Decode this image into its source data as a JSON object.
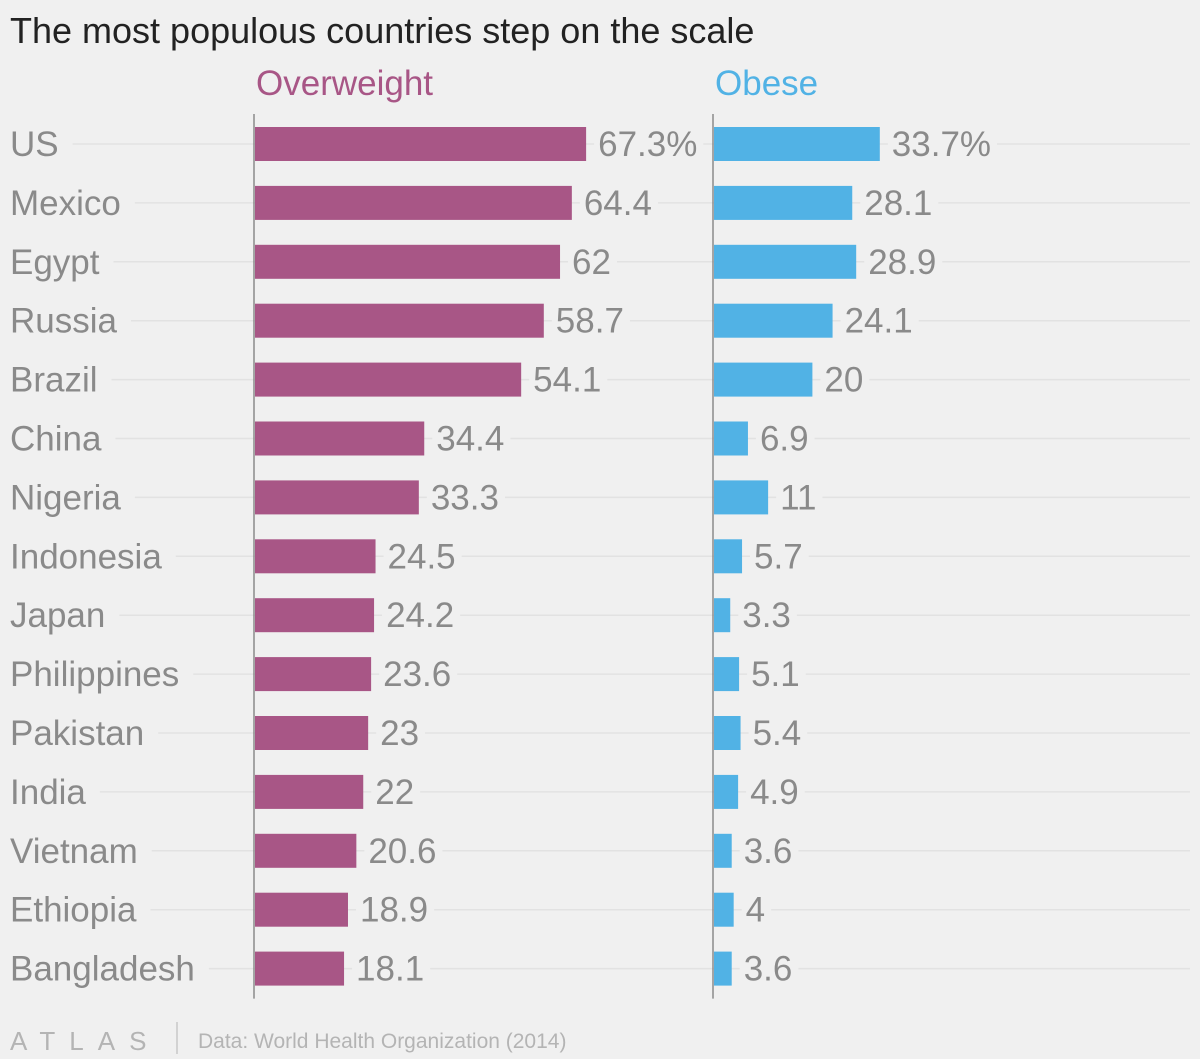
{
  "chart_data": {
    "type": "bar",
    "orientation": "horizontal",
    "title": "The most populous countries step on the scale",
    "categories": [
      "US",
      "Mexico",
      "Egypt",
      "Russia",
      "Brazil",
      "China",
      "Nigeria",
      "Indonesia",
      "Japan",
      "Philippines",
      "Pakistan",
      "India",
      "Vietnam",
      "Ethiopia",
      "Bangladesh"
    ],
    "series": [
      {
        "name": "Overweight",
        "color": "#a85686",
        "values": [
          67.3,
          64.4,
          62,
          58.7,
          54.1,
          34.4,
          33.3,
          24.5,
          24.2,
          23.6,
          23,
          22,
          20.6,
          18.9,
          18.1
        ],
        "labels": [
          "67.3%",
          "64.4",
          "62",
          "58.7",
          "54.1",
          "34.4",
          "33.3",
          "24.5",
          "24.2",
          "23.6",
          "23",
          "22",
          "20.6",
          "18.9",
          "18.1"
        ]
      },
      {
        "name": "Obese",
        "color": "#51b2e5",
        "values": [
          33.7,
          28.1,
          28.9,
          24.1,
          20,
          6.9,
          11,
          5.7,
          3.3,
          5.1,
          5.4,
          4.9,
          3.6,
          4,
          3.6
        ],
        "labels": [
          "33.7%",
          "28.1",
          "28.9",
          "24.1",
          "20",
          "6.9",
          "11",
          "5.7",
          "3.3",
          "5.1",
          "5.4",
          "4.9",
          "3.6",
          "4",
          "3.6"
        ]
      }
    ],
    "unit": "%",
    "xlim": [
      0,
      90
    ]
  },
  "footer": {
    "logo": "ATLAS",
    "source": "Data: World Health Organization (2014)"
  }
}
